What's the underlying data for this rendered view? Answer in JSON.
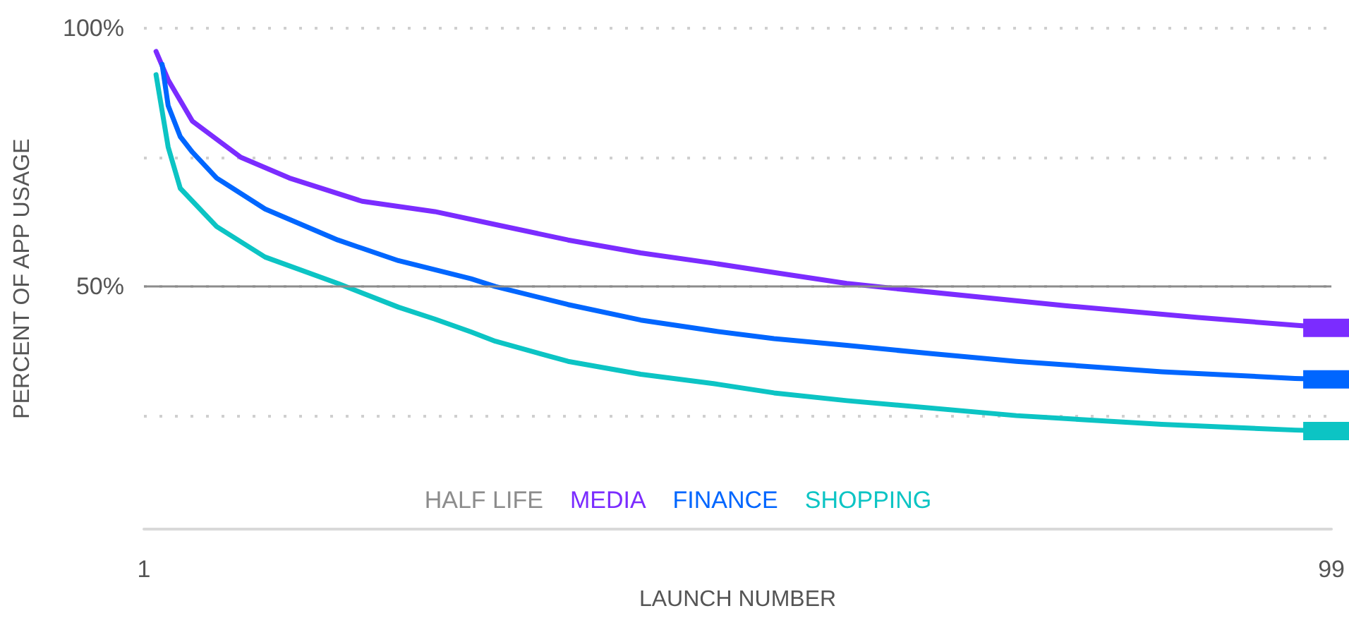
{
  "chart_data": {
    "type": "line",
    "xlabel": "LAUNCH NUMBER",
    "ylabel": "PERCENT OF APP USAGE",
    "xlim": [
      1,
      99
    ],
    "xticks": [
      1,
      99
    ],
    "ylim": [
      3,
      100
    ],
    "yticks": [
      {
        "value": 25,
        "label": null
      },
      {
        "value": 50,
        "label": "50%"
      },
      {
        "value": 75,
        "label": null
      },
      {
        "value": 100,
        "label": "100%"
      }
    ],
    "grid": "y",
    "legend": "bottom",
    "ref_lines": [
      {
        "axis": "y",
        "value": 50,
        "label": "HALF LIFE",
        "color": "#8c8c8c"
      }
    ],
    "series": [
      {
        "name": "MEDIA",
        "color": "#7b2cff",
        "x": [
          2,
          3,
          5,
          9,
          13,
          19,
          25,
          30,
          36,
          42,
          48,
          53,
          59,
          63,
          77,
          88,
          96,
          99
        ],
        "values": [
          95.5,
          90,
          82,
          75,
          71,
          66.5,
          64.5,
          62,
          59,
          56.5,
          54.5,
          52.7,
          50.6,
          49.6,
          46.3,
          44,
          42.5,
          42
        ]
      },
      {
        "name": "FINANCE",
        "color": "#0066ff",
        "x": [
          2.5,
          3,
          4,
          5,
          7,
          11,
          17,
          22,
          28,
          30,
          36,
          42,
          48,
          53,
          59,
          66,
          73,
          85,
          96,
          99
        ],
        "values": [
          93,
          85,
          79,
          76,
          71,
          65,
          59,
          55,
          51.5,
          50,
          46.5,
          43.5,
          41.4,
          39.9,
          38.6,
          37,
          35.5,
          33.5,
          32.2,
          32
        ]
      },
      {
        "name": "SHOPPING",
        "color": "#0cc4c4",
        "x": [
          2,
          2.5,
          3,
          4,
          7,
          11,
          17,
          22,
          25,
          28,
          30,
          36,
          42,
          48,
          53,
          59,
          73,
          85,
          96,
          99
        ],
        "values": [
          91,
          84,
          77,
          69,
          61.6,
          55.7,
          50.6,
          46,
          43.7,
          41.2,
          39.4,
          35.5,
          33,
          31.2,
          29.4,
          27.9,
          25,
          23.3,
          22.2,
          22
        ]
      }
    ]
  }
}
